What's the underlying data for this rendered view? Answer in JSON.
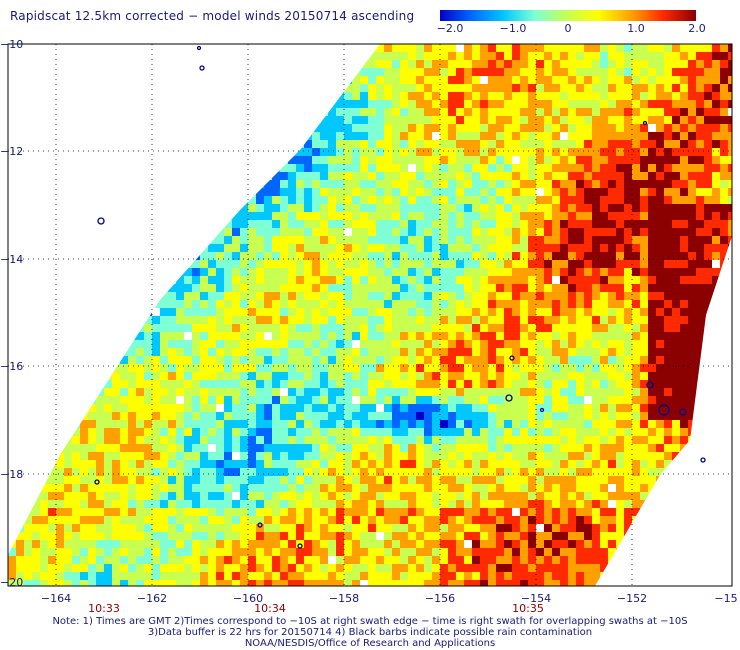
{
  "title": "Rapidscat 12.5km corrected − model winds 20150714 ascending",
  "colorbar": {
    "ticks": [
      "−2.0",
      "−1.0",
      "0",
      "1.0",
      "2.0"
    ],
    "min": -2.0,
    "max": 2.0,
    "colors": [
      "#0000c8",
      "#0066ff",
      "#00c8ff",
      "#7fffd4",
      "#c8ff50",
      "#ffff00",
      "#ff9f00",
      "#ff2a00",
      "#8b0000"
    ]
  },
  "map": {
    "lat_ticks": [
      "−10",
      "−12",
      "−14",
      "−16",
      "−18",
      "−20"
    ],
    "lon_ticks": [
      "−164",
      "−162",
      "−160",
      "−158",
      "−156",
      "−154",
      "−152",
      "−15"
    ],
    "time_labels": [
      "10:33",
      "10:34",
      "10:35"
    ],
    "land_color": "#00008b"
  },
  "notes": [
    "Note: 1) Times are GMT 2)Times correspond to −10S at right swath edge − time is right swath for overlapping swaths at −10S",
    "3)Data buffer is 22 hrs for 20150714 4) Black barbs indicate possible rain contamination",
    "NOAA/NESDIS/Office of Research and Applications"
  ]
}
